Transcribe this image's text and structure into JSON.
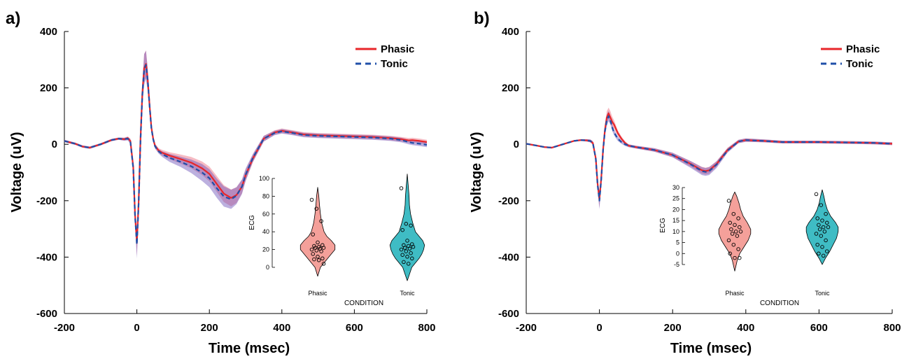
{
  "chart_data": [
    {
      "type": "line",
      "panel_label": "a)",
      "xlabel": "Time (msec)",
      "ylabel": "Voltage (uV)",
      "xlim": [
        -200,
        800
      ],
      "ylim": [
        -600,
        400
      ],
      "xticks": [
        -200,
        0,
        200,
        400,
        600,
        800
      ],
      "yticks": [
        -600,
        -400,
        -200,
        0,
        200,
        400
      ],
      "legend_position": "top-right",
      "series": [
        {
          "name": "Phasic",
          "color": "#e8262a",
          "dash": "solid",
          "x": [
            -200,
            -170,
            -150,
            -130,
            -100,
            -70,
            -50,
            -35,
            -25,
            -18,
            -10,
            -5,
            0,
            5,
            10,
            15,
            20,
            25,
            30,
            35,
            40,
            45,
            50,
            60,
            70,
            90,
            120,
            150,
            180,
            200,
            220,
            240,
            260,
            275,
            290,
            300,
            320,
            350,
            380,
            400,
            430,
            460,
            500,
            550,
            600,
            650,
            700,
            730,
            750,
            760,
            780,
            800
          ],
          "y": [
            12,
            2,
            -8,
            -12,
            0,
            15,
            20,
            18,
            22,
            12,
            -80,
            -250,
            -350,
            -200,
            20,
            180,
            270,
            285,
            230,
            140,
            60,
            20,
            -5,
            -22,
            -30,
            -40,
            -52,
            -65,
            -85,
            -105,
            -140,
            -175,
            -190,
            -180,
            -150,
            -110,
            -50,
            20,
            42,
            48,
            42,
            35,
            32,
            30,
            28,
            26,
            22,
            18,
            14,
            15,
            12,
            8
          ],
          "band_width": [
            4,
            4,
            4,
            4,
            4,
            4,
            4,
            5,
            6,
            8,
            15,
            30,
            45,
            40,
            30,
            40,
            50,
            48,
            40,
            25,
            15,
            10,
            8,
            8,
            10,
            12,
            16,
            20,
            24,
            26,
            28,
            30,
            30,
            28,
            24,
            20,
            14,
            10,
            8,
            8,
            8,
            8,
            8,
            8,
            8,
            8,
            8,
            8,
            8,
            8,
            8,
            8
          ]
        },
        {
          "name": "Tonic",
          "color": "#1f4fa8",
          "dash": "dashed",
          "x": [
            -200,
            -170,
            -150,
            -130,
            -100,
            -70,
            -50,
            -35,
            -25,
            -18,
            -10,
            -5,
            0,
            5,
            10,
            15,
            20,
            25,
            30,
            35,
            40,
            45,
            50,
            60,
            70,
            90,
            120,
            150,
            180,
            200,
            220,
            240,
            260,
            275,
            290,
            300,
            320,
            350,
            380,
            400,
            430,
            460,
            500,
            550,
            600,
            650,
            700,
            730,
            750,
            760,
            780,
            800
          ],
          "y": [
            12,
            2,
            -8,
            -12,
            0,
            15,
            20,
            18,
            20,
            10,
            -85,
            -255,
            -355,
            -205,
            15,
            175,
            265,
            282,
            228,
            138,
            58,
            18,
            -7,
            -25,
            -35,
            -48,
            -62,
            -78,
            -100,
            -120,
            -155,
            -185,
            -195,
            -182,
            -150,
            -108,
            -48,
            20,
            40,
            46,
            40,
            33,
            30,
            28,
            26,
            24,
            20,
            15,
            8,
            5,
            2,
            -2
          ],
          "band_width": [
            4,
            4,
            4,
            4,
            4,
            4,
            4,
            5,
            6,
            8,
            15,
            30,
            50,
            40,
            30,
            40,
            55,
            50,
            40,
            25,
            15,
            10,
            8,
            8,
            10,
            14,
            18,
            24,
            30,
            32,
            34,
            36,
            34,
            30,
            26,
            22,
            14,
            10,
            8,
            8,
            8,
            8,
            8,
            8,
            8,
            8,
            8,
            8,
            8,
            8,
            8,
            8
          ]
        }
      ],
      "inset": {
        "type": "violin",
        "xlabel": "CONDITION",
        "ylabel": "ECG",
        "ylim": [
          0,
          100
        ],
        "yticks": [
          0,
          20,
          40,
          60,
          80,
          100
        ],
        "categories": [
          "Phasic",
          "Tonic"
        ],
        "colors": [
          "#f4a09a",
          "#3fbcc4"
        ],
        "density": [
          {
            "y": [
              -10,
              0,
              5,
              10,
              15,
              20,
              25,
              30,
              35,
              40,
              50,
              60,
              70,
              80,
              90
            ],
            "w": [
              0,
              0.15,
              0.35,
              0.55,
              0.75,
              0.95,
              0.95,
              0.75,
              0.5,
              0.35,
              0.22,
              0.15,
              0.1,
              0.06,
              0
            ]
          },
          {
            "y": [
              -15,
              0,
              5,
              10,
              15,
              20,
              25,
              30,
              35,
              40,
              50,
              60,
              70,
              80,
              90,
              105
            ],
            "w": [
              0,
              0.25,
              0.45,
              0.65,
              0.8,
              0.9,
              0.95,
              0.85,
              0.65,
              0.45,
              0.3,
              0.18,
              0.12,
              0.1,
              0.06,
              0
            ]
          }
        ],
        "points": [
          [
            76,
            66,
            52,
            37,
            28,
            25,
            24,
            23,
            22,
            22,
            21,
            20,
            19,
            18,
            15,
            12,
            10,
            9,
            8,
            4
          ],
          [
            89,
            49,
            47,
            42,
            30,
            26,
            25,
            24,
            23,
            22,
            21,
            20,
            18,
            16,
            14,
            12,
            10,
            6,
            4
          ]
        ]
      }
    },
    {
      "type": "line",
      "panel_label": "b)",
      "xlabel": "Time (msec)",
      "ylabel": "Voltage (uV)",
      "xlim": [
        -200,
        800
      ],
      "ylim": [
        -600,
        400
      ],
      "xticks": [
        -200,
        0,
        200,
        400,
        600,
        800
      ],
      "yticks": [
        -600,
        -400,
        -200,
        0,
        200,
        400
      ],
      "legend_position": "top-right",
      "series": [
        {
          "name": "Phasic",
          "color": "#e8262a",
          "dash": "solid",
          "x": [
            -200,
            -170,
            -150,
            -130,
            -100,
            -70,
            -50,
            -35,
            -25,
            -18,
            -10,
            -5,
            0,
            5,
            10,
            15,
            20,
            25,
            30,
            35,
            40,
            50,
            60,
            70,
            80,
            100,
            150,
            200,
            250,
            280,
            290,
            300,
            320,
            350,
            380,
            400,
            450,
            500,
            550,
            600,
            650,
            700,
            750,
            800
          ],
          "y": [
            2,
            -5,
            -10,
            -12,
            0,
            12,
            15,
            14,
            12,
            5,
            -50,
            -140,
            -195,
            -120,
            -20,
            50,
            95,
            110,
            95,
            80,
            70,
            40,
            20,
            5,
            -5,
            -10,
            -20,
            -38,
            -70,
            -92,
            -95,
            -92,
            -70,
            -20,
            10,
            15,
            12,
            8,
            8,
            8,
            7,
            6,
            5,
            2
          ],
          "band_width": [
            3,
            3,
            3,
            3,
            3,
            3,
            3,
            4,
            5,
            6,
            10,
            20,
            30,
            25,
            15,
            18,
            22,
            20,
            22,
            18,
            15,
            10,
            8,
            6,
            5,
            5,
            6,
            8,
            10,
            12,
            12,
            12,
            10,
            8,
            6,
            6,
            5,
            5,
            5,
            5,
            5,
            5,
            5,
            5
          ]
        },
        {
          "name": "Tonic",
          "color": "#1f4fa8",
          "dash": "dashed",
          "x": [
            -200,
            -170,
            -150,
            -130,
            -100,
            -70,
            -50,
            -35,
            -25,
            -18,
            -10,
            -5,
            0,
            5,
            10,
            15,
            20,
            25,
            30,
            35,
            40,
            50,
            60,
            70,
            80,
            100,
            150,
            200,
            250,
            280,
            290,
            300,
            320,
            350,
            380,
            400,
            450,
            500,
            550,
            600,
            650,
            700,
            750,
            800
          ],
          "y": [
            2,
            -5,
            -10,
            -12,
            0,
            12,
            15,
            14,
            12,
            5,
            -52,
            -145,
            -200,
            -125,
            -22,
            45,
            85,
            100,
            85,
            60,
            42,
            20,
            8,
            0,
            -5,
            -10,
            -20,
            -38,
            -72,
            -95,
            -98,
            -95,
            -72,
            -22,
            10,
            15,
            12,
            8,
            8,
            8,
            7,
            6,
            5,
            2
          ],
          "band_width": [
            3,
            3,
            3,
            3,
            3,
            3,
            3,
            4,
            5,
            6,
            10,
            20,
            30,
            25,
            15,
            18,
            20,
            18,
            15,
            12,
            10,
            8,
            6,
            6,
            5,
            5,
            6,
            8,
            12,
            14,
            14,
            14,
            12,
            8,
            6,
            6,
            5,
            5,
            5,
            5,
            5,
            5,
            5,
            5
          ]
        }
      ],
      "inset": {
        "type": "violin",
        "xlabel": "CONDITION",
        "ylabel": "ECG",
        "ylim": [
          -5,
          30
        ],
        "yticks": [
          -5,
          0,
          5,
          10,
          15,
          20,
          25,
          30
        ],
        "categories": [
          "Phasic",
          "Tonic"
        ],
        "colors": [
          "#f4a09a",
          "#3fbcc4"
        ],
        "density": [
          {
            "y": [
              -8,
              -3,
              0,
              3,
              6,
              9,
              11,
              14,
              17,
              20,
              23,
              26,
              28
            ],
            "w": [
              0,
              0.15,
              0.3,
              0.55,
              0.8,
              0.95,
              0.95,
              0.75,
              0.5,
              0.35,
              0.25,
              0.12,
              0
            ]
          },
          {
            "y": [
              -5,
              -2,
              1,
              4,
              7,
              10,
              12,
              14,
              17,
              20,
              23,
              26,
              29
            ],
            "w": [
              0,
              0.2,
              0.45,
              0.65,
              0.85,
              0.95,
              0.95,
              0.8,
              0.5,
              0.3,
              0.18,
              0.1,
              0
            ]
          }
        ],
        "points": [
          [
            24,
            18,
            16,
            14,
            13,
            12,
            11,
            10,
            10,
            9,
            8,
            6,
            4,
            2,
            0,
            -2,
            -2
          ],
          [
            27,
            22,
            18,
            16,
            15,
            14,
            13,
            12,
            12,
            11,
            10,
            9,
            8,
            6,
            4,
            3,
            1,
            0,
            -1
          ]
        ]
      }
    }
  ]
}
